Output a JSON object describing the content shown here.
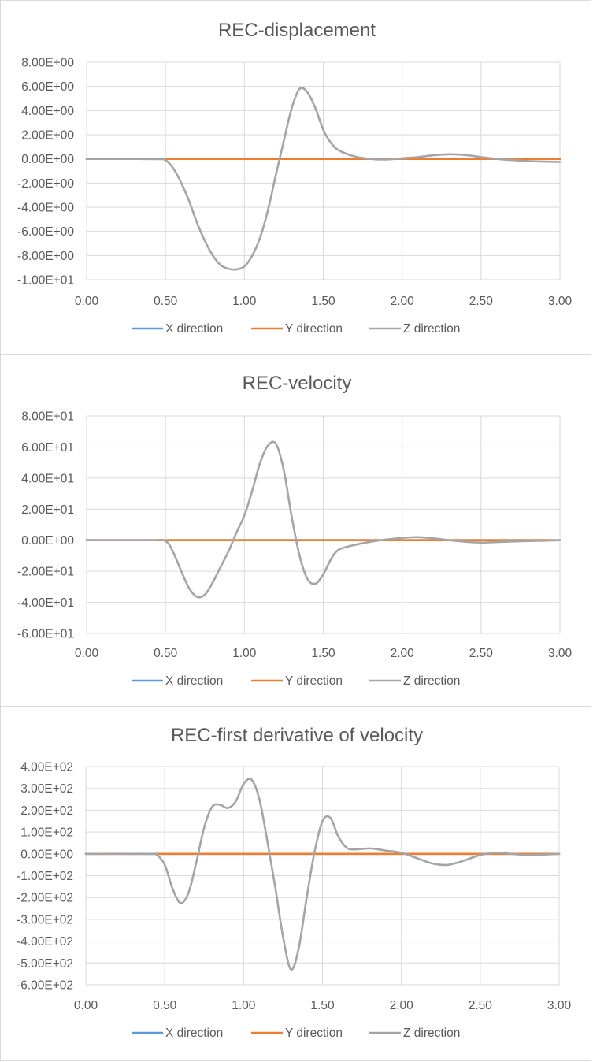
{
  "chart_data": [
    {
      "type": "line",
      "title": "REC-displacement",
      "xlabel": "",
      "ylabel": "",
      "xlim": [
        0,
        3
      ],
      "ylim": [
        -10,
        8
      ],
      "x_tick_labels": [
        "0.00",
        "0.50",
        "1.00",
        "1.50",
        "2.00",
        "2.50",
        "3.00"
      ],
      "y_tick_labels": [
        "8.00E+00",
        "6.00E+00",
        "4.00E+00",
        "2.00E+00",
        "0.00E+00",
        "-2.00E+00",
        "-4.00E+00",
        "-6.00E+00",
        "-8.00E+00",
        "-1.00E+01"
      ],
      "grid": "vertical and horizontal",
      "legend_position": "bottom",
      "series": [
        {
          "name": "X direction",
          "color": "#5b9bd5",
          "x": [
            0,
            3
          ],
          "y": [
            0,
            0
          ]
        },
        {
          "name": "Y direction",
          "color": "#ed7d31",
          "x": [
            0,
            3
          ],
          "y": [
            0,
            0
          ]
        },
        {
          "name": "Z direction",
          "color": "#a5a5a5",
          "x": [
            0,
            0.3,
            0.45,
            0.5,
            0.55,
            0.6,
            0.65,
            0.7,
            0.75,
            0.8,
            0.85,
            0.9,
            0.95,
            1.0,
            1.05,
            1.1,
            1.15,
            1.2,
            1.25,
            1.3,
            1.35,
            1.4,
            1.45,
            1.5,
            1.55,
            1.6,
            1.7,
            1.8,
            1.9,
            2.0,
            2.1,
            2.2,
            2.3,
            2.4,
            2.5,
            2.6,
            2.7,
            2.8,
            2.9,
            3.0
          ],
          "y": [
            0,
            0,
            -0.02,
            -0.1,
            -0.8,
            -2.0,
            -3.5,
            -5.3,
            -6.8,
            -8.0,
            -8.8,
            -9.1,
            -9.15,
            -8.9,
            -8.0,
            -6.5,
            -4.2,
            -1.3,
            1.5,
            4.2,
            5.8,
            5.5,
            4.2,
            2.4,
            1.3,
            0.7,
            0.2,
            0.0,
            -0.05,
            0.05,
            0.15,
            0.3,
            0.38,
            0.32,
            0.15,
            0.0,
            -0.1,
            -0.18,
            -0.22,
            -0.25
          ]
        }
      ]
    },
    {
      "type": "line",
      "title": "REC-velocity",
      "xlabel": "",
      "ylabel": "",
      "xlim": [
        0,
        3
      ],
      "ylim": [
        -60,
        80
      ],
      "x_tick_labels": [
        "0.00",
        "0.50",
        "1.00",
        "1.50",
        "2.00",
        "2.50",
        "3.00"
      ],
      "y_tick_labels": [
        "8.00E+01",
        "6.00E+01",
        "4.00E+01",
        "2.00E+01",
        "0.00E+00",
        "-2.00E+01",
        "-4.00E+01",
        "-6.00E+01"
      ],
      "grid": "vertical and horizontal",
      "legend_position": "bottom",
      "series": [
        {
          "name": "X direction",
          "color": "#5b9bd5",
          "x": [
            0,
            3
          ],
          "y": [
            0,
            0
          ]
        },
        {
          "name": "Y direction",
          "color": "#ed7d31",
          "x": [
            0,
            3
          ],
          "y": [
            0,
            0
          ]
        },
        {
          "name": "Z direction",
          "color": "#a5a5a5",
          "x": [
            0,
            0.4,
            0.5,
            0.55,
            0.6,
            0.65,
            0.7,
            0.75,
            0.8,
            0.85,
            0.9,
            0.95,
            1.0,
            1.05,
            1.1,
            1.15,
            1.2,
            1.25,
            1.3,
            1.35,
            1.4,
            1.45,
            1.5,
            1.55,
            1.6,
            1.7,
            1.8,
            1.9,
            2.0,
            2.1,
            2.2,
            2.3,
            2.4,
            2.5,
            2.6,
            2.7,
            2.8,
            2.9,
            3.0
          ],
          "y": [
            0,
            0,
            -0.5,
            -8,
            -20,
            -31,
            -36.5,
            -35,
            -27,
            -17,
            -7,
            5,
            16,
            32,
            50,
            61,
            62,
            45,
            15,
            -10,
            -25,
            -28,
            -22,
            -12,
            -6,
            -3,
            -1,
            0.5,
            1.5,
            2,
            1.2,
            0,
            -1,
            -1.5,
            -1.2,
            -0.8,
            -0.5,
            -0.3,
            0
          ]
        }
      ]
    },
    {
      "type": "line",
      "title": "REC-first derivative of velocity",
      "xlabel": "",
      "ylabel": "",
      "xlim": [
        0,
        3
      ],
      "ylim": [
        -600,
        400
      ],
      "x_tick_labels": [
        "0.00",
        "0.50",
        "1.00",
        "1.50",
        "2.00",
        "2.50",
        "3.00"
      ],
      "y_tick_labels": [
        "4.00E+02",
        "3.00E+02",
        "2.00E+02",
        "1.00E+02",
        "0.00E+00",
        "-1.00E+02",
        "-2.00E+02",
        "-3.00E+02",
        "-4.00E+02",
        "-5.00E+02",
        "-6.00E+02"
      ],
      "grid": "vertical and horizontal",
      "legend_position": "bottom",
      "series": [
        {
          "name": "X direction",
          "color": "#5b9bd5",
          "x": [
            0,
            3
          ],
          "y": [
            0,
            0
          ]
        },
        {
          "name": "Y direction",
          "color": "#ed7d31",
          "x": [
            0,
            3
          ],
          "y": [
            0,
            0
          ]
        },
        {
          "name": "Z direction",
          "color": "#a5a5a5",
          "x": [
            0,
            0.4,
            0.45,
            0.5,
            0.55,
            0.6,
            0.65,
            0.7,
            0.75,
            0.8,
            0.85,
            0.9,
            0.95,
            1.0,
            1.05,
            1.1,
            1.15,
            1.2,
            1.25,
            1.3,
            1.35,
            1.4,
            1.45,
            1.5,
            1.55,
            1.6,
            1.65,
            1.7,
            1.8,
            1.9,
            2.0,
            2.1,
            2.2,
            2.3,
            2.4,
            2.5,
            2.6,
            2.7,
            2.8,
            3.0
          ],
          "y": [
            0,
            0,
            -5,
            -50,
            -160,
            -225,
            -180,
            -40,
            120,
            215,
            225,
            210,
            240,
            320,
            340,
            250,
            60,
            -150,
            -380,
            -530,
            -430,
            -200,
            10,
            150,
            165,
            80,
            30,
            20,
            25,
            15,
            5,
            -20,
            -45,
            -50,
            -30,
            -5,
            5,
            0,
            -5,
            0
          ]
        }
      ]
    }
  ]
}
